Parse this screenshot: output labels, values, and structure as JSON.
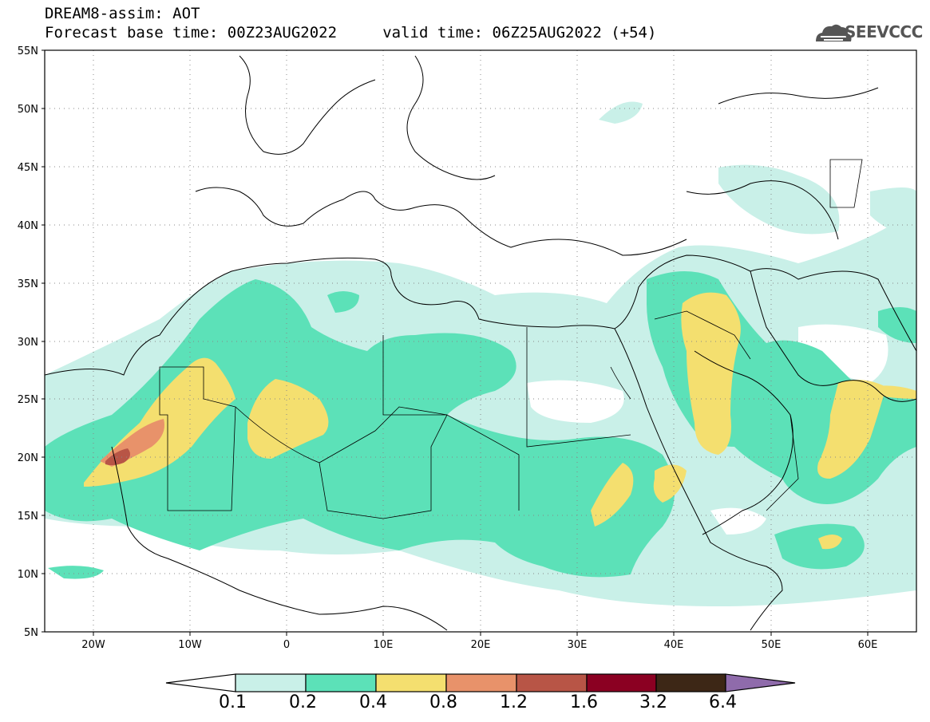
{
  "title": {
    "line1": "DREAM8-assim: AOT",
    "line2": "Forecast base time: 00Z23AUG2022     valid time: 06Z25AUG2022 (+54)"
  },
  "logo": {
    "text": "SEEVCCC",
    "icon": "cloud-logo-icon"
  },
  "colors": {
    "c1": "#c9f0e8",
    "c2": "#5ce1b8",
    "c3": "#f4df6f",
    "c4": "#e8926a",
    "c5": "#b85546",
    "c6": "#8b0022",
    "c7": "#3d2716",
    "c8": "#8f6bab"
  },
  "map": {
    "lon_range": [
      -25,
      65
    ],
    "lat_range": [
      5,
      55
    ],
    "lat_ticks": [
      "55N",
      "50N",
      "45N",
      "40N",
      "35N",
      "30N",
      "25N",
      "20N",
      "15N",
      "10N",
      "5N"
    ],
    "lon_ticks": [
      "20W",
      "10W",
      "0",
      "10E",
      "20E",
      "30E",
      "40E",
      "50E",
      "60E"
    ],
    "grid": true
  },
  "colorbar": {
    "labels": [
      "0.1",
      "0.2",
      "0.4",
      "0.8",
      "1.2",
      "1.6",
      "3.2",
      "6.4"
    ]
  }
}
